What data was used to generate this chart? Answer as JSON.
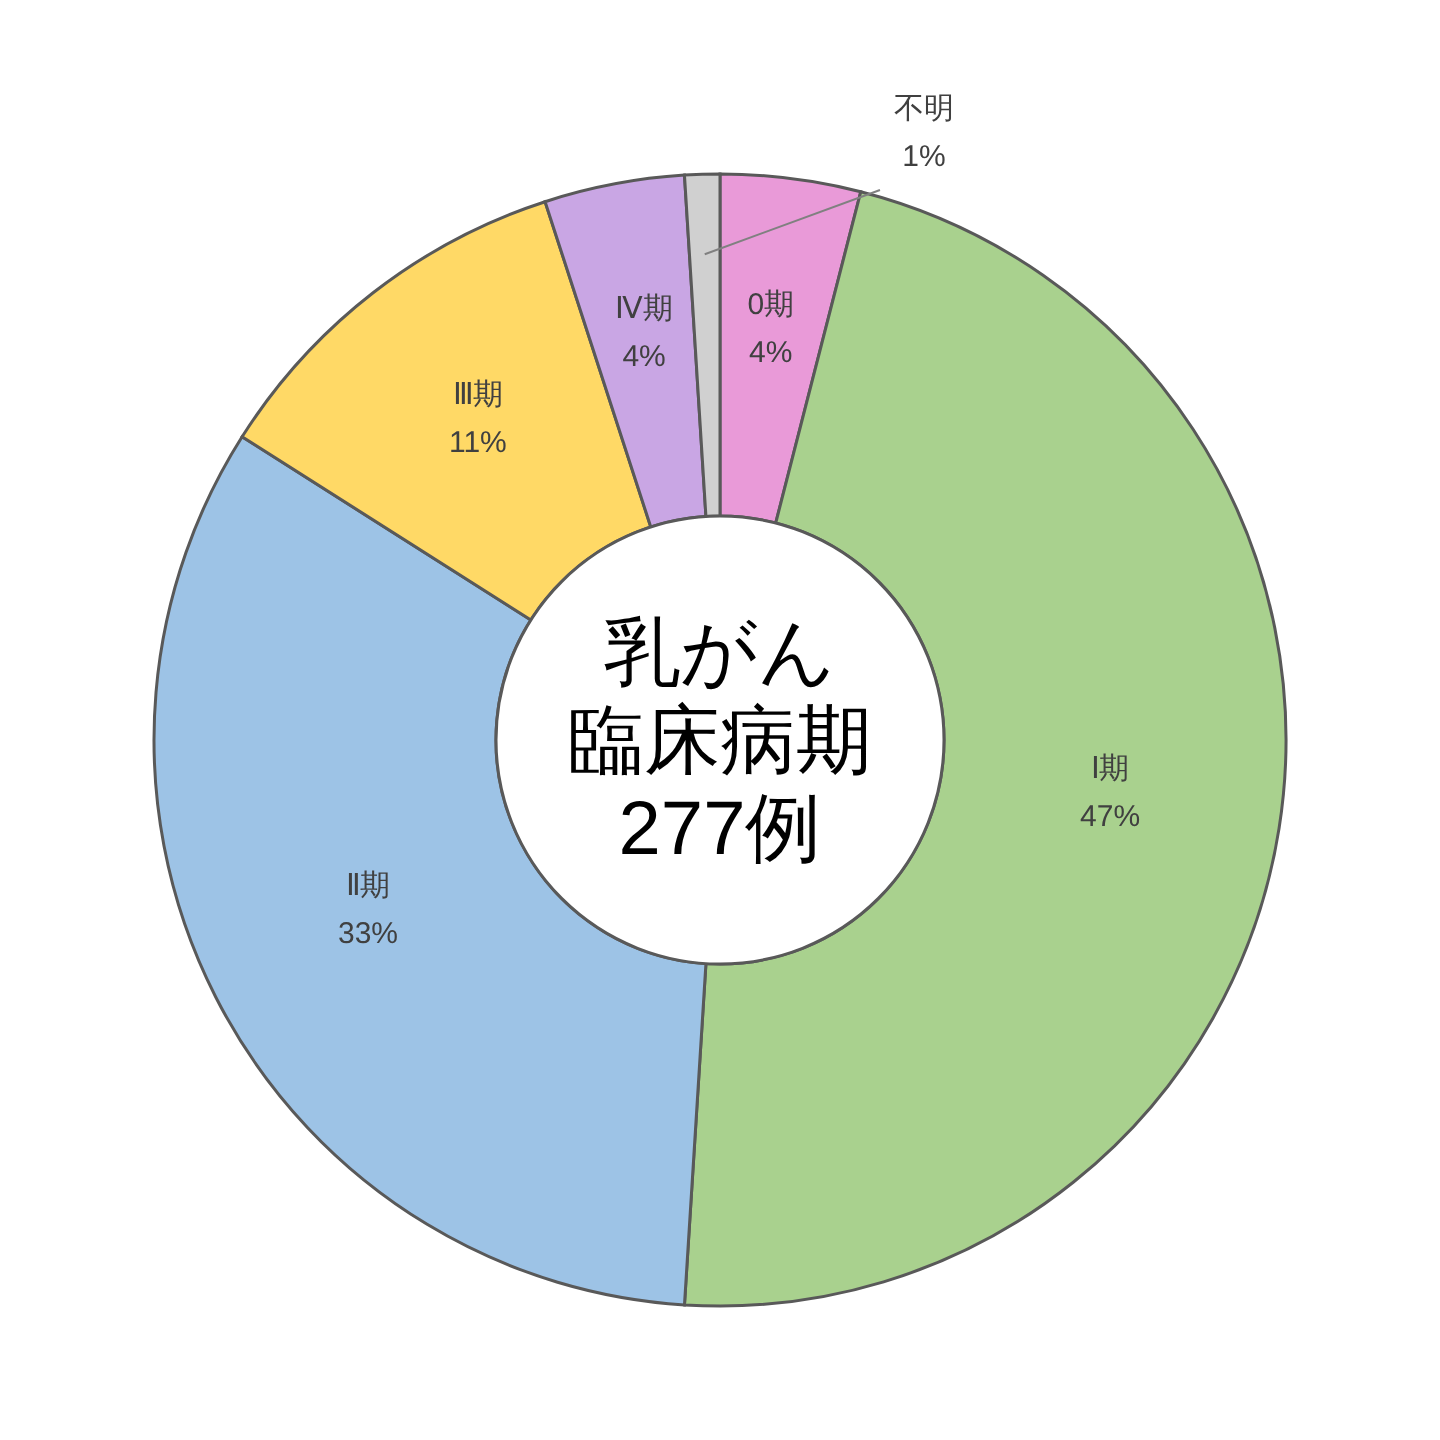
{
  "chart_data": {
    "type": "donut",
    "annotations": [
      "乳がん",
      "臨床病期",
      "277例"
    ],
    "categories": [
      "0期",
      "Ⅰ期",
      "Ⅱ期",
      "Ⅲ期",
      "Ⅳ期",
      "不明"
    ],
    "values": [
      4,
      47,
      33,
      11,
      4,
      1
    ],
    "value_labels": [
      "4%",
      "47%",
      "33%",
      "11%",
      "4%",
      "1%"
    ],
    "colors": [
      "#e99ad8",
      "#a9d18e",
      "#9dc3e6",
      "#ffd966",
      "#c9a6e4",
      "#d0d0d0"
    ]
  }
}
